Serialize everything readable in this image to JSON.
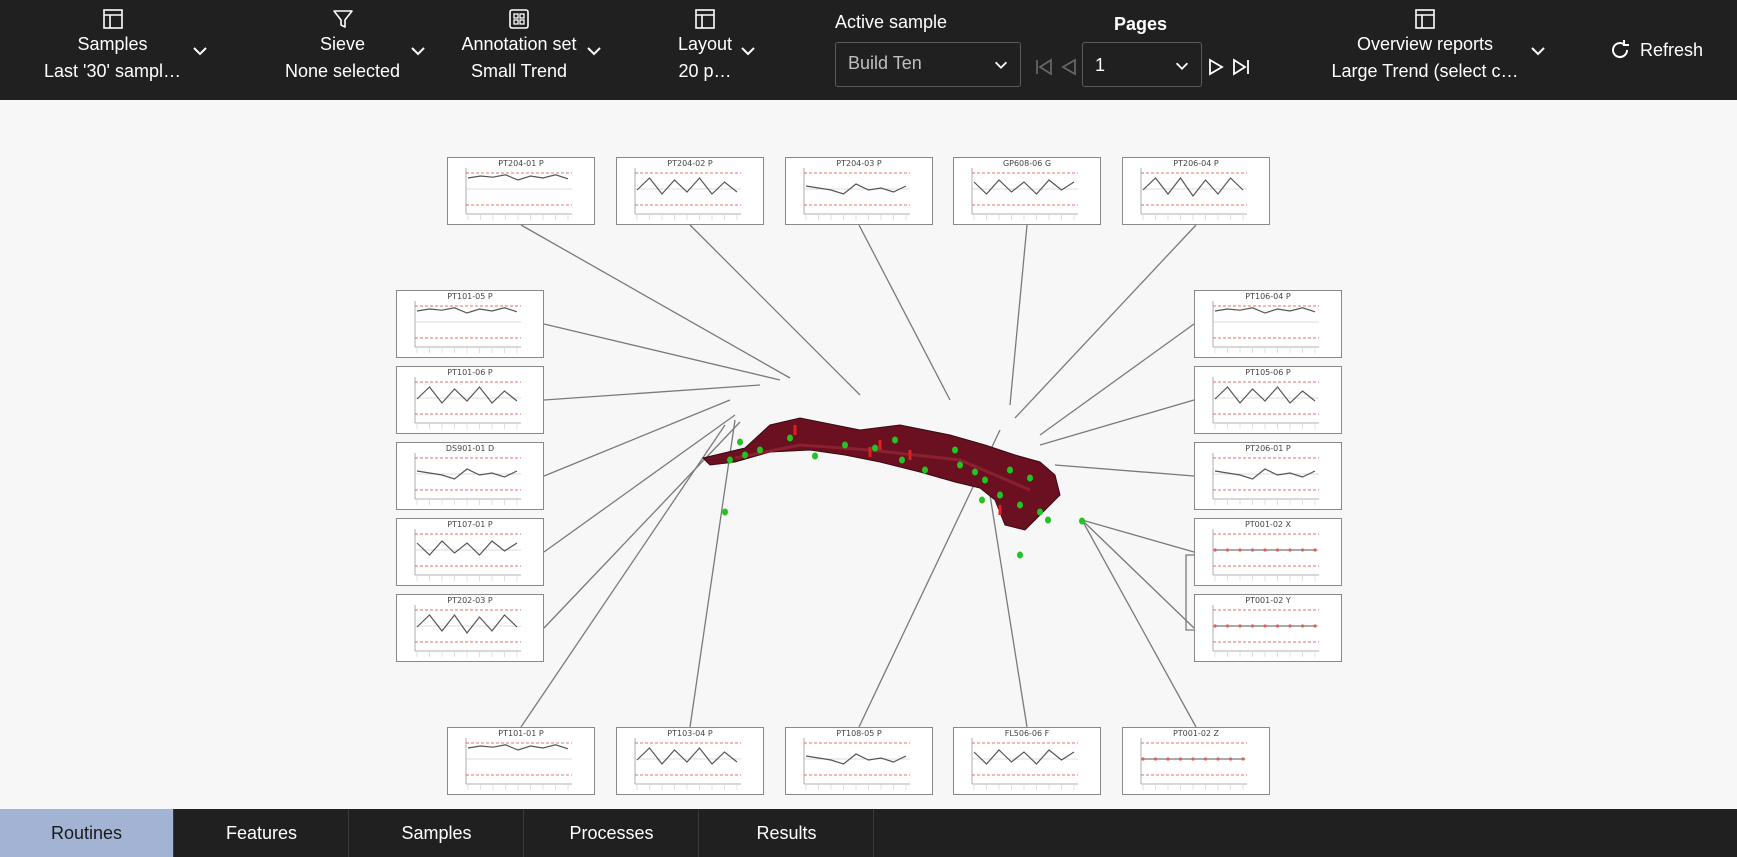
{
  "toolbar": {
    "samples": {
      "label": "Samples",
      "value": "Last '30' sampl…",
      "icon": "layout-icon"
    },
    "sieve": {
      "label": "Sieve",
      "value": "None selected",
      "icon": "filter-icon"
    },
    "annotation": {
      "label": "Annotation set",
      "value": "Small Trend",
      "icon": "grid-icon"
    },
    "layout": {
      "label": "Layout",
      "value": "20 p…",
      "icon": "layout-icon"
    },
    "active_sample": {
      "label": "Active sample",
      "value": "Build Ten"
    },
    "pages": {
      "label": "Pages",
      "value": "1"
    },
    "overview": {
      "label": "Overview reports",
      "value": "Large Trend (select c…",
      "icon": "layout-icon"
    },
    "refresh_label": "Refresh"
  },
  "cards": [
    {
      "title": "PT204-01  P"
    },
    {
      "title": "PT204-02  P"
    },
    {
      "title": "PT204-03  P"
    },
    {
      "title": "GP608-06  G"
    },
    {
      "title": "PT206-04  P"
    },
    {
      "title": "PT101-05  P"
    },
    {
      "title": "PT101-06  P"
    },
    {
      "title": "DS901-01  D"
    },
    {
      "title": "PT107-01  P"
    },
    {
      "title": "PT202-03  P"
    },
    {
      "title": "PT106-04  P"
    },
    {
      "title": "PT105-06  P"
    },
    {
      "title": "PT206-01  P"
    },
    {
      "title": "PT001-02  X"
    },
    {
      "title": "PT001-02  Y"
    },
    {
      "title": "PT101-01  P"
    },
    {
      "title": "PT103-04  P"
    },
    {
      "title": "PT108-05  P"
    },
    {
      "title": "FL506-06  F"
    },
    {
      "title": "PT001-02  Z"
    }
  ],
  "tabs": [
    {
      "label": "Routines",
      "active": true
    },
    {
      "label": "Features"
    },
    {
      "label": "Samples"
    },
    {
      "label": "Processes"
    },
    {
      "label": "Results"
    }
  ],
  "colors": {
    "toolbar_bg": "#202020",
    "tab_active": "#a3b3d3",
    "part": "#6a1020",
    "point_ok": "#22c322",
    "point_bad": "#e02020"
  }
}
